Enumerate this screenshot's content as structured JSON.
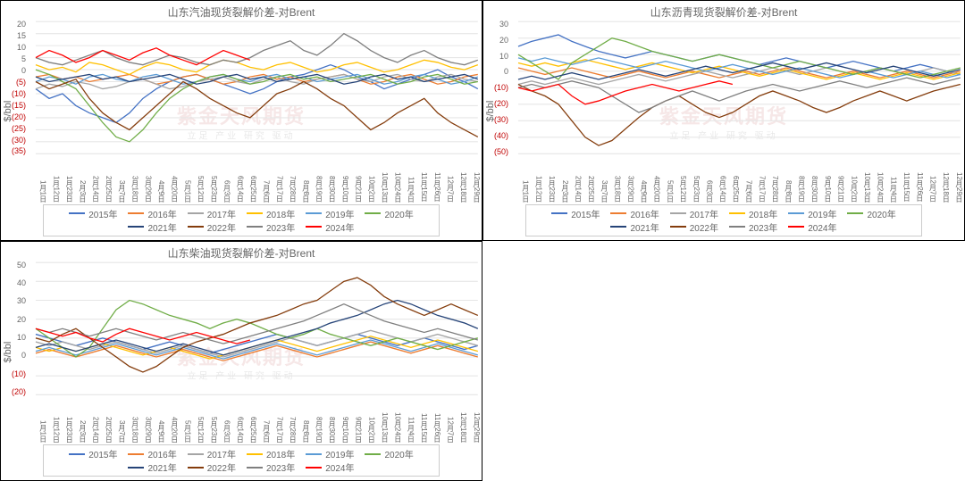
{
  "watermark": "紫金天风期货",
  "watermark_sub": "立足 产业 研究 驱动",
  "xticks": [
    "1月1日",
    "1月12日",
    "1月23日",
    "2月3日",
    "2月14日",
    "2月25日",
    "3月7日",
    "3月18日",
    "3月29日",
    "4月9日",
    "4月20日",
    "5月1日",
    "5月12日",
    "5月23日",
    "6月3日",
    "6月14日",
    "6月25日",
    "7月6日",
    "7月17日",
    "7月28日",
    "8月8日",
    "8月19日",
    "8月30日",
    "9月10日",
    "9月21日",
    "10月2日",
    "10月13日",
    "10月24日",
    "11月4日",
    "11月15日",
    "11月26日",
    "12月7日",
    "12月18日",
    "12月29日"
  ],
  "series_meta": [
    {
      "label": "2015年",
      "color": "#4472c4"
    },
    {
      "label": "2016年",
      "color": "#ed7d31"
    },
    {
      "label": "2017年",
      "color": "#a5a5a5"
    },
    {
      "label": "2018年",
      "color": "#ffc000"
    },
    {
      "label": "2019年",
      "color": "#5b9bd5"
    },
    {
      "label": "2020年",
      "color": "#70ad47"
    },
    {
      "label": "2021年",
      "color": "#264478"
    },
    {
      "label": "2022年",
      "color": "#843c0c"
    },
    {
      "label": "2023年",
      "color": "#7f7f7f"
    },
    {
      "label": "2024年",
      "color": "#ff0000"
    }
  ],
  "charts": [
    {
      "title": "山东汽油现货裂解价差-对Brent",
      "ylabel": "$/bbl",
      "ylim": [
        -35,
        20
      ],
      "ytick_step": 5,
      "grid_color": "#e6e6e6",
      "bg": "#ffffff",
      "line_width": 1.2,
      "series": {
        "2015年": [
          -8,
          -12,
          -10,
          -15,
          -18,
          -20,
          -22,
          -18,
          -12,
          -8,
          -5,
          -3,
          -2,
          -4,
          -6,
          -8,
          -10,
          -8,
          -5,
          -3,
          -2,
          0,
          2,
          0,
          -3,
          -5,
          -8,
          -6,
          -4,
          -2,
          0,
          -3,
          -5,
          -8
        ],
        "2016年": [
          -3,
          -2,
          -4,
          -3,
          -5,
          -4,
          -3,
          -2,
          -4,
          -6,
          -5,
          -3,
          -2,
          -4,
          -6,
          -5,
          -3,
          -2,
          -4,
          -3,
          -5,
          -4,
          -3,
          -2,
          -4,
          -6,
          -5,
          -3,
          -2,
          -4,
          -6,
          -5,
          -3,
          -2
        ],
        "2017年": [
          -8,
          -6,
          -7,
          -5,
          -6,
          -8,
          -7,
          -5,
          -4,
          -6,
          -8,
          -7,
          -5,
          -4,
          -3,
          -5,
          -6,
          -4,
          -3,
          -5,
          -6,
          -4,
          -3,
          -2,
          -4,
          -5,
          -3,
          -2,
          -4,
          -5,
          -3,
          -2,
          -4,
          -5
        ],
        "2018年": [
          2,
          0,
          1,
          -1,
          3,
          2,
          0,
          -2,
          1,
          3,
          2,
          0,
          -1,
          2,
          4,
          3,
          1,
          0,
          2,
          3,
          1,
          -1,
          0,
          2,
          3,
          1,
          -1,
          0,
          2,
          4,
          3,
          1,
          0,
          2
        ],
        "2019年": [
          -5,
          -3,
          -4,
          -6,
          -3,
          -2,
          -4,
          -5,
          -3,
          -2,
          -4,
          -6,
          -5,
          -3,
          -2,
          -4,
          -5,
          -3,
          -2,
          -4,
          -3,
          -5,
          -4,
          -3,
          -2,
          -4,
          -6,
          -5,
          -3,
          -2,
          -4,
          -6,
          -5,
          -3
        ],
        "2020年": [
          0,
          -2,
          -5,
          -8,
          -15,
          -22,
          -28,
          -30,
          -25,
          -18,
          -12,
          -8,
          -5,
          -3,
          -2,
          -4,
          -6,
          -5,
          -3,
          -2,
          -4,
          -3,
          -5,
          -4,
          -3,
          -2,
          -4,
          -6,
          -5,
          -3,
          -2,
          -4,
          -6,
          -5
        ],
        "2021年": [
          -3,
          -5,
          -4,
          -3,
          -2,
          -4,
          -3,
          -5,
          -4,
          -3,
          -2,
          -4,
          -6,
          -5,
          -3,
          -2,
          -4,
          -3,
          -5,
          -4,
          -3,
          -2,
          -4,
          -6,
          -5,
          -3,
          -2,
          -4,
          -3,
          -5,
          -4,
          -3,
          -2,
          -4
        ],
        "2022年": [
          -5,
          -8,
          -6,
          -4,
          -12,
          -18,
          -22,
          -25,
          -20,
          -15,
          -10,
          -5,
          -8,
          -12,
          -15,
          -18,
          -20,
          -15,
          -10,
          -8,
          -5,
          -8,
          -12,
          -15,
          -20,
          -25,
          -22,
          -18,
          -15,
          -12,
          -18,
          -22,
          -25,
          -28
        ],
        "2023年": [
          5,
          3,
          2,
          4,
          6,
          8,
          5,
          3,
          2,
          4,
          6,
          5,
          3,
          2,
          4,
          3,
          5,
          8,
          10,
          12,
          8,
          6,
          10,
          15,
          12,
          8,
          5,
          3,
          6,
          8,
          5,
          3,
          2,
          4
        ],
        "2024年": [
          5,
          8,
          6,
          3,
          5,
          8,
          6,
          4,
          7,
          9,
          6,
          4,
          2,
          5,
          8,
          6,
          4,
          null,
          null,
          null,
          null,
          null,
          null,
          null,
          null,
          null,
          null,
          null,
          null,
          null,
          null,
          null,
          null,
          null
        ]
      }
    },
    {
      "title": "山东沥青现货裂解价差-对Brent",
      "ylabel": "$/bbl",
      "ylim": [
        -50,
        30
      ],
      "ytick_step": 10,
      "grid_color": "#e6e6e6",
      "bg": "#ffffff",
      "line_width": 1.2,
      "series": {
        "2015年": [
          15,
          18,
          20,
          22,
          18,
          15,
          12,
          10,
          8,
          10,
          12,
          10,
          8,
          6,
          8,
          10,
          8,
          6,
          4,
          6,
          8,
          6,
          4,
          2,
          4,
          6,
          4,
          2,
          0,
          2,
          4,
          2,
          0,
          -2
        ],
        "2016年": [
          2,
          0,
          -2,
          0,
          2,
          0,
          -2,
          -4,
          -2,
          0,
          -2,
          -4,
          -2,
          0,
          -2,
          -4,
          -2,
          0,
          -2,
          0,
          2,
          0,
          -2,
          -4,
          -2,
          0,
          -2,
          -4,
          -2,
          0,
          -2,
          -4,
          -2,
          0
        ],
        "2017年": [
          -8,
          -6,
          -8,
          -6,
          -4,
          -6,
          -8,
          -6,
          -4,
          -2,
          -4,
          -6,
          -4,
          -2,
          0,
          -2,
          -4,
          -2,
          0,
          2,
          0,
          -2,
          0,
          2,
          0,
          -2,
          0,
          2,
          0,
          -2,
          0,
          2,
          0,
          -2
        ],
        "2018年": [
          5,
          3,
          5,
          3,
          5,
          7,
          5,
          3,
          1,
          3,
          5,
          3,
          1,
          -1,
          1,
          3,
          1,
          -1,
          -3,
          -1,
          1,
          -1,
          -3,
          -5,
          -3,
          -1,
          -3,
          -5,
          -3,
          -1,
          -3,
          -5,
          -3,
          -1
        ],
        "2019年": [
          8,
          6,
          8,
          6,
          4,
          6,
          8,
          6,
          4,
          2,
          4,
          6,
          4,
          2,
          0,
          2,
          4,
          2,
          0,
          -2,
          0,
          2,
          0,
          -2,
          -4,
          -2,
          0,
          -2,
          -4,
          -2,
          0,
          -2,
          -4,
          -2
        ],
        "2020年": [
          10,
          5,
          0,
          -5,
          5,
          10,
          15,
          20,
          18,
          15,
          12,
          10,
          8,
          6,
          8,
          10,
          8,
          6,
          4,
          2,
          4,
          6,
          4,
          2,
          0,
          -2,
          0,
          2,
          0,
          -2,
          -4,
          -2,
          0,
          2
        ],
        "2021年": [
          -5,
          -3,
          -5,
          -3,
          -1,
          -3,
          -5,
          -3,
          -1,
          1,
          -1,
          -3,
          -1,
          1,
          3,
          1,
          -1,
          1,
          3,
          5,
          3,
          1,
          3,
          5,
          3,
          1,
          -1,
          1,
          3,
          1,
          -1,
          -3,
          -1,
          1
        ],
        "2022年": [
          -8,
          -12,
          -15,
          -20,
          -30,
          -40,
          -45,
          -42,
          -35,
          -28,
          -22,
          -18,
          -15,
          -20,
          -25,
          -28,
          -25,
          -20,
          -15,
          -12,
          -15,
          -18,
          -22,
          -25,
          -22,
          -18,
          -15,
          -12,
          -15,
          -18,
          -15,
          -12,
          -10,
          -8
        ],
        "2023年": [
          -10,
          -8,
          -10,
          -8,
          -6,
          -8,
          -10,
          -15,
          -20,
          -25,
          -22,
          -18,
          -15,
          -12,
          -15,
          -18,
          -15,
          -12,
          -10,
          -8,
          -10,
          -12,
          -10,
          -8,
          -6,
          -8,
          -10,
          -8,
          -6,
          -4,
          -6,
          -8,
          -6,
          -4
        ],
        "2024年": [
          -10,
          -12,
          -10,
          -8,
          -15,
          -20,
          -18,
          -15,
          -12,
          -10,
          -8,
          -10,
          -12,
          -10,
          -8,
          -6,
          -8,
          null,
          null,
          null,
          null,
          null,
          null,
          null,
          null,
          null,
          null,
          null,
          null,
          null,
          null,
          null,
          null,
          null
        ]
      }
    },
    {
      "title": "山东柴油现货裂解价差-对Brent",
      "ylabel": "$/bbl",
      "ylim": [
        -20,
        50
      ],
      "ytick_step": 10,
      "grid_color": "#e6e6e6",
      "bg": "#ffffff",
      "line_width": 1.2,
      "series": {
        "2015年": [
          12,
          10,
          8,
          6,
          8,
          10,
          8,
          6,
          4,
          6,
          8,
          6,
          4,
          2,
          4,
          6,
          8,
          10,
          12,
          10,
          8,
          6,
          8,
          10,
          12,
          10,
          8,
          6,
          8,
          10,
          8,
          6,
          4,
          6
        ],
        "2016年": [
          2,
          4,
          2,
          0,
          2,
          4,
          6,
          4,
          2,
          0,
          2,
          4,
          2,
          0,
          -2,
          0,
          2,
          4,
          6,
          4,
          2,
          0,
          2,
          4,
          6,
          8,
          6,
          4,
          2,
          4,
          6,
          4,
          2,
          0
        ],
        "2017年": [
          8,
          6,
          8,
          6,
          4,
          6,
          8,
          6,
          4,
          2,
          4,
          6,
          4,
          2,
          0,
          2,
          4,
          6,
          8,
          10,
          8,
          6,
          8,
          10,
          12,
          14,
          12,
          10,
          8,
          10,
          12,
          10,
          8,
          6
        ],
        "2018年": [
          5,
          3,
          5,
          3,
          5,
          7,
          5,
          3,
          1,
          3,
          5,
          3,
          1,
          -1,
          1,
          3,
          5,
          7,
          9,
          7,
          5,
          3,
          5,
          7,
          9,
          11,
          9,
          7,
          5,
          7,
          9,
          7,
          5,
          3
        ],
        "2019年": [
          3,
          5,
          3,
          1,
          3,
          5,
          7,
          5,
          3,
          1,
          3,
          5,
          3,
          1,
          -1,
          1,
          3,
          5,
          7,
          5,
          3,
          1,
          3,
          5,
          7,
          9,
          7,
          5,
          3,
          5,
          7,
          5,
          3,
          1
        ],
        "2020年": [
          15,
          10,
          5,
          0,
          5,
          15,
          25,
          30,
          28,
          25,
          22,
          20,
          18,
          15,
          18,
          20,
          18,
          15,
          12,
          10,
          12,
          15,
          12,
          10,
          8,
          6,
          8,
          10,
          8,
          6,
          4,
          6,
          8,
          10
        ],
        "2021年": [
          5,
          7,
          5,
          3,
          5,
          7,
          9,
          7,
          5,
          3,
          5,
          7,
          5,
          3,
          1,
          3,
          5,
          7,
          9,
          11,
          13,
          15,
          18,
          20,
          22,
          25,
          28,
          30,
          28,
          25,
          22,
          20,
          18,
          15
        ],
        "2022年": [
          10,
          8,
          12,
          15,
          10,
          5,
          0,
          -5,
          -8,
          -5,
          0,
          5,
          8,
          10,
          12,
          15,
          18,
          20,
          22,
          25,
          28,
          30,
          35,
          40,
          42,
          38,
          32,
          28,
          25,
          22,
          25,
          28,
          25,
          22
        ],
        "2023年": [
          15,
          13,
          15,
          13,
          11,
          13,
          15,
          13,
          11,
          9,
          11,
          13,
          11,
          9,
          7,
          9,
          11,
          13,
          15,
          17,
          19,
          22,
          25,
          28,
          25,
          22,
          19,
          17,
          15,
          13,
          15,
          13,
          11,
          9
        ],
        "2024年": [
          15,
          13,
          11,
          13,
          10,
          8,
          12,
          15,
          13,
          11,
          9,
          11,
          13,
          11,
          9,
          7,
          9,
          null,
          null,
          null,
          null,
          null,
          null,
          null,
          null,
          null,
          null,
          null,
          null,
          null,
          null,
          null,
          null,
          null
        ]
      }
    }
  ]
}
